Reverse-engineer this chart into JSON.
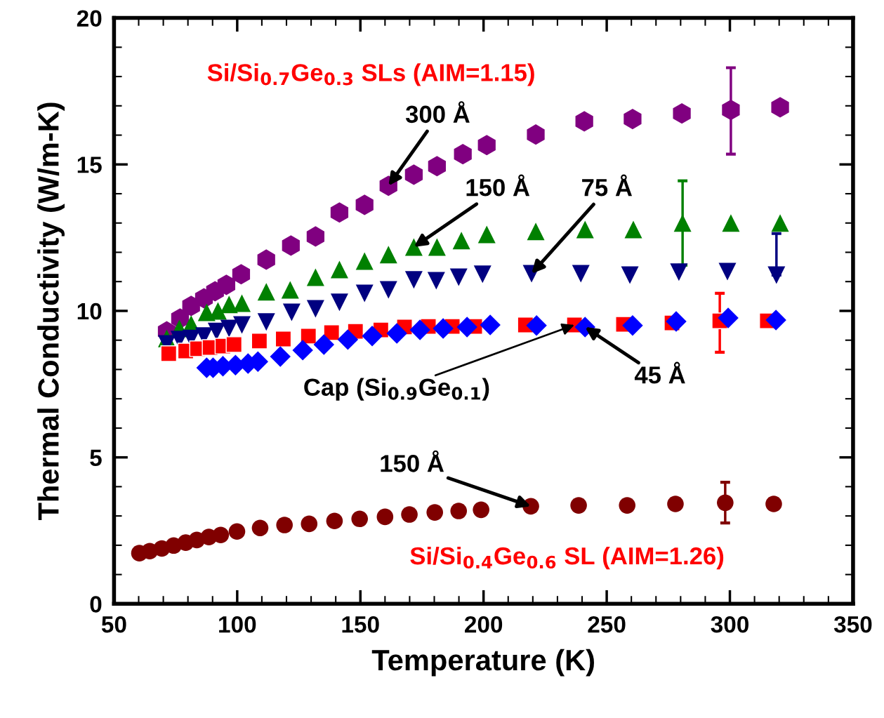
{
  "chart_data": {
    "type": "scatter",
    "xlabel": "Temperature (K)",
    "ylabel": "Thermal Conductivity (W/m-K)",
    "xlim": [
      50,
      350
    ],
    "xticks": [
      50,
      100,
      150,
      200,
      250,
      300,
      350
    ],
    "ylim": [
      0,
      20
    ],
    "yticks": [
      0,
      5,
      10,
      15,
      20
    ],
    "grid": false,
    "legend": false,
    "series": [
      {
        "color": "#800080",
        "x": [
          71.4,
          76.8,
          81.3,
          86.5,
          91.0,
          95.6,
          101.6,
          111.8,
          121.8,
          131.8,
          141.5,
          151.7,
          161.4,
          171.7,
          181.1,
          191.6,
          201.3,
          221.2,
          240.9,
          260.5,
          280.5,
          300.4,
          320.4
        ],
        "values": [
          9.3,
          9.74,
          10.17,
          10.43,
          10.67,
          10.89,
          11.25,
          11.75,
          12.23,
          12.54,
          13.36,
          13.62,
          14.27,
          14.65,
          14.94,
          15.35,
          15.66,
          16.02,
          16.47,
          16.55,
          16.74,
          16.86,
          16.95
        ],
        "errors": [
          null,
          null,
          null,
          null,
          null,
          null,
          null,
          null,
          null,
          null,
          null,
          null,
          null,
          null,
          null,
          null,
          null,
          null,
          null,
          null,
          null,
          [
            15.35,
            18.3
          ],
          null
        ]
      },
      {
        "color": "#008000",
        "marker": "triangle",
        "x": [
          71.4,
          76.5,
          81.3,
          87.6,
          92.2,
          96.7,
          101.9,
          111.8,
          121.5,
          131.8,
          141.5,
          151.7,
          161.4,
          171.7,
          181.1,
          191.0,
          201.3,
          221.2,
          241.2,
          260.8,
          280.8,
          300.4,
          320.4
        ],
        "values": [
          9.06,
          9.4,
          9.55,
          9.95,
          10.0,
          10.22,
          10.26,
          10.65,
          10.72,
          11.15,
          11.41,
          11.7,
          11.92,
          12.18,
          12.18,
          12.4,
          12.61,
          12.71,
          12.78,
          12.78,
          13.0,
          13.0,
          13.0
        ],
        "errors": [
          null,
          null,
          null,
          null,
          null,
          null,
          null,
          null,
          null,
          null,
          null,
          null,
          null,
          null,
          null,
          null,
          null,
          null,
          null,
          null,
          [
            11.56,
            14.44
          ],
          null,
          null
        ]
      },
      {
        "color": "#000080",
        "marker": "triangle_down",
        "x": [
          71.4,
          76.5,
          81.3,
          86.5,
          91.6,
          96.7,
          101.9,
          111.8,
          122.1,
          131.8,
          141.5,
          151.7,
          161.4,
          171.7,
          180.8,
          189.9,
          199.6,
          219.5,
          239.5,
          259.4,
          279.3,
          299.0,
          318.9
        ],
        "values": [
          8.87,
          9.02,
          9.06,
          9.14,
          9.3,
          9.4,
          9.52,
          9.62,
          9.95,
          10.07,
          10.29,
          10.6,
          10.72,
          11.06,
          11.03,
          11.15,
          11.25,
          11.27,
          11.27,
          11.22,
          11.32,
          11.34,
          11.22
        ],
        "errors": [
          null,
          null,
          null,
          null,
          null,
          null,
          null,
          null,
          null,
          null,
          null,
          null,
          null,
          null,
          null,
          null,
          null,
          null,
          null,
          null,
          null,
          null,
          [
            11.22,
            12.64
          ]
        ]
      },
      {
        "color": "#ff0000",
        "marker": "square",
        "x": [
          72.2,
          79.1,
          83.9,
          89.0,
          94.2,
          98.7,
          109.0,
          118.7,
          128.9,
          138.3,
          148.0,
          158.3,
          167.9,
          177.6,
          187.3,
          196.4,
          217.0,
          236.9,
          256.8,
          276.5,
          295.9,
          315.2
        ],
        "values": [
          8.54,
          8.63,
          8.71,
          8.75,
          8.8,
          8.85,
          8.97,
          9.04,
          9.14,
          9.26,
          9.3,
          9.35,
          9.45,
          9.47,
          9.47,
          9.47,
          9.52,
          9.52,
          9.54,
          9.59,
          9.66,
          9.66
        ],
        "errors": [
          null,
          null,
          null,
          null,
          null,
          null,
          null,
          null,
          null,
          null,
          null,
          null,
          null,
          null,
          null,
          null,
          null,
          null,
          null,
          null,
          [
            8.59,
            10.6
          ],
          null
        ]
      },
      {
        "color": "#0000ff",
        "marker": "diamond",
        "x": [
          87.6,
          90.2,
          94.2,
          99.3,
          104.4,
          108.4,
          117.5,
          126.6,
          135.2,
          144.9,
          154.8,
          164.8,
          174.2,
          183.6,
          193.3,
          202.7,
          221.5,
          241.2,
          260.5,
          278.2,
          299.3,
          318.7
        ],
        "values": [
          8.06,
          8.06,
          8.11,
          8.15,
          8.2,
          8.27,
          8.44,
          8.66,
          8.85,
          9.02,
          9.14,
          9.23,
          9.35,
          9.4,
          9.45,
          9.52,
          9.5,
          9.45,
          9.5,
          9.64,
          9.76,
          9.69
        ]
      },
      {
        "color": "#800000",
        "marker": "circle",
        "x": [
          60.3,
          64.5,
          69.4,
          74.2,
          79.1,
          83.6,
          88.5,
          93.3,
          99.9,
          109.3,
          119.2,
          129.2,
          139.5,
          149.7,
          160.0,
          169.9,
          180.2,
          189.9,
          199.0,
          219.2,
          238.6,
          258.3,
          277.9,
          298.1,
          317.8
        ],
        "values": [
          1.73,
          1.8,
          1.89,
          1.99,
          2.09,
          2.18,
          2.28,
          2.35,
          2.47,
          2.59,
          2.69,
          2.73,
          2.83,
          2.9,
          2.97,
          3.05,
          3.12,
          3.17,
          3.21,
          3.33,
          3.36,
          3.36,
          3.41,
          3.45,
          3.41
        ],
        "errors": [
          null,
          null,
          null,
          null,
          null,
          null,
          null,
          null,
          null,
          null,
          null,
          null,
          null,
          null,
          null,
          null,
          null,
          null,
          null,
          null,
          null,
          null,
          null,
          [
            2.76,
            4.15
          ],
          null
        ]
      }
    ],
    "annotations": [
      "Si/Si$_{0.7}$Ge$_{0.3}$ SLs (AIM=1.15)",
      {
        "text": "300 Å",
        "x": 161.4,
        "y": 14.27
      },
      {
        "text": "150 Å",
        "x": 171.7,
        "y": 12.18
      },
      {
        "text": "75 Å",
        "x": 219.5,
        "y": 11.27
      },
      {
        "text": "Cap (Si$_{0.9}$Ge$_{0.1}$)",
        "x": 236.9,
        "y": 9.52
      },
      {
        "text": "45 Å",
        "x": 241.2,
        "y": 9.45
      },
      {
        "text": "150 Å",
        "x": 219.2,
        "y": 3.33
      },
      "Si/Si$_{0.4}$Ge$_{0.6}$ SL (AIM=1.26)"
    ]
  }
}
